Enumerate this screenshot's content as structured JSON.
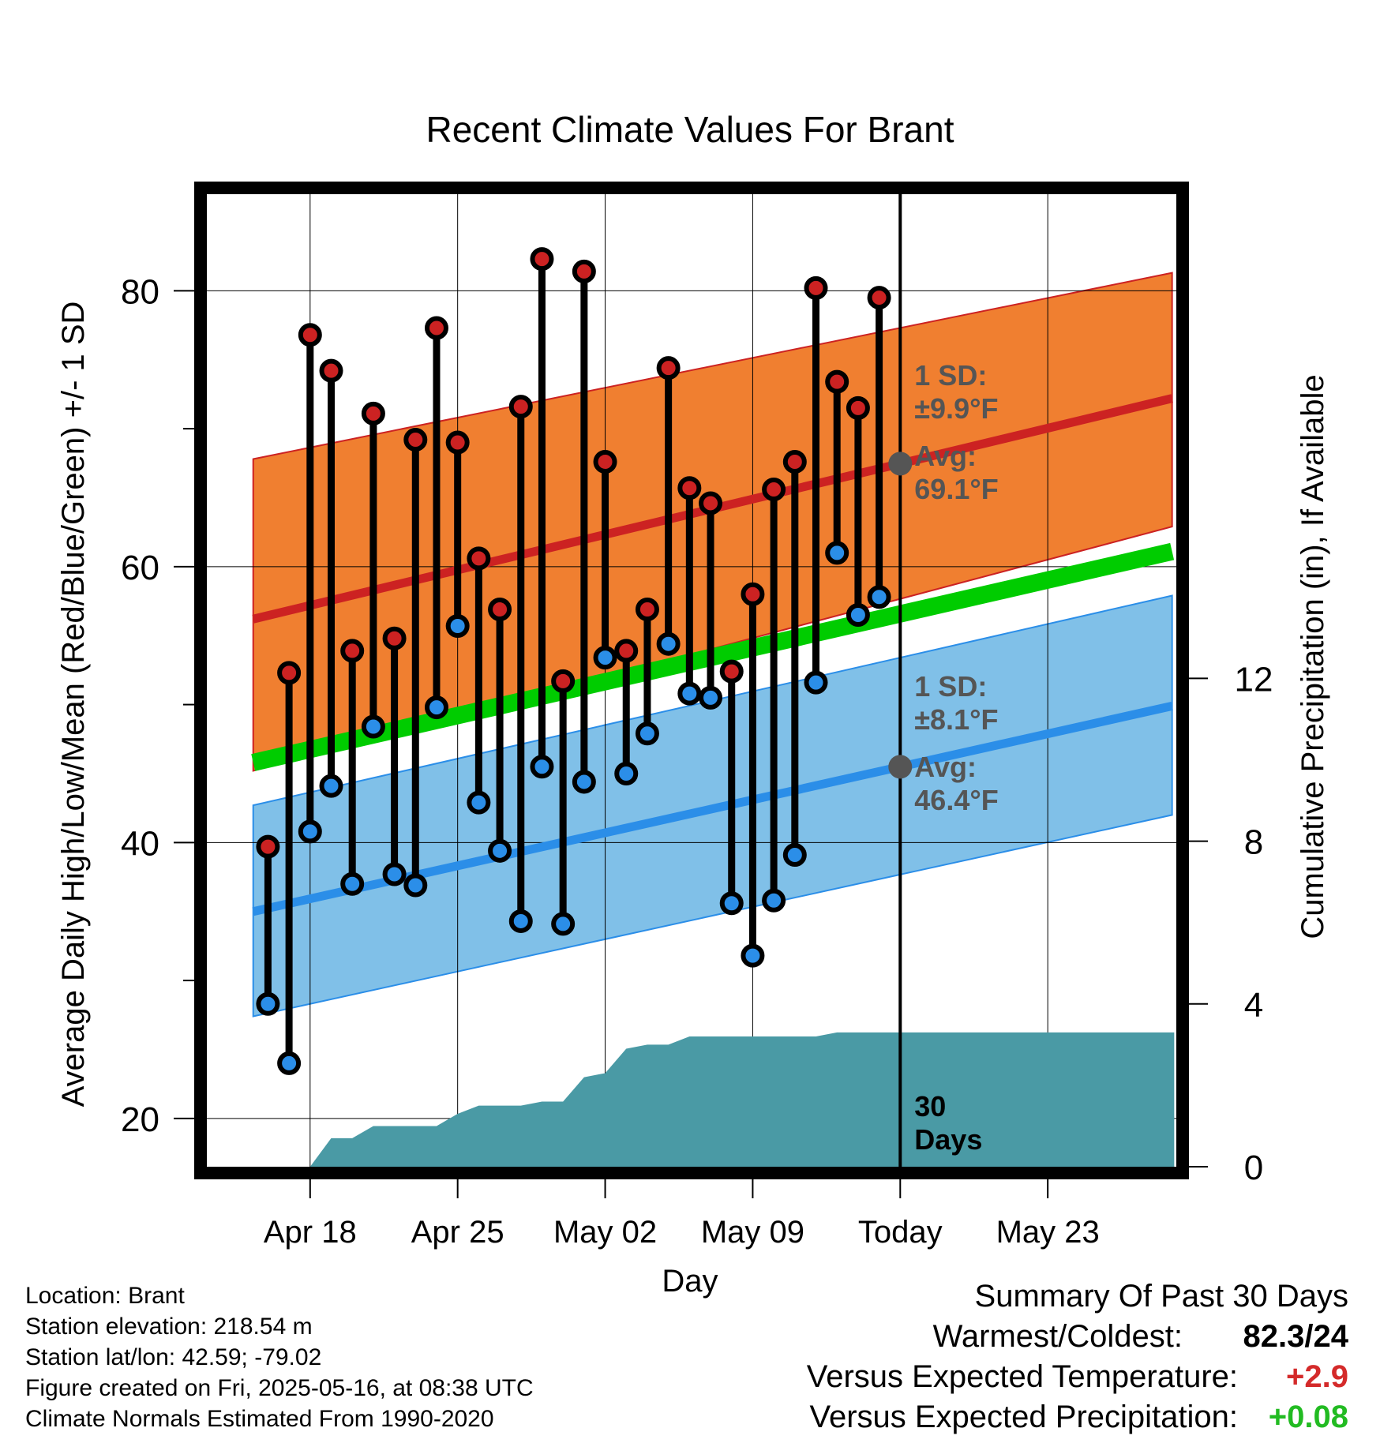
{
  "chart_data": {
    "type": "line",
    "title": "Recent Climate Values For Brant",
    "xlabel": "Day",
    "ylabel": "Average Daily High/Low/Mean (Red/Blue/Green) +/- 1 SD",
    "y2label": "Cumulative Precipitation (in), If Available",
    "ylim": [
      16.5,
      87
    ],
    "y2lim": [
      0,
      23.9
    ],
    "xlim": [
      -4.9,
      41.1
    ],
    "x_origin_label": "Apr 18",
    "x_ticks": [
      {
        "day": 0,
        "label": "Apr 18"
      },
      {
        "day": 7,
        "label": "Apr 25"
      },
      {
        "day": 14,
        "label": "May 02"
      },
      {
        "day": 21,
        "label": "May 09"
      },
      {
        "day": 28,
        "label": "Today"
      },
      {
        "day": 35,
        "label": "May 23"
      }
    ],
    "y_ticks": [
      20,
      40,
      60,
      80
    ],
    "y2_ticks": [
      0,
      4,
      8,
      12
    ],
    "grid": true,
    "today_day": 28,
    "today_label": "30\nDays",
    "normals": {
      "x": [
        -2.7,
        40.9
      ],
      "high_mean": [
        56.2,
        72.2
      ],
      "high_upper": [
        67.8,
        81.3
      ],
      "high_lower": [
        45.2,
        62.9
      ],
      "mean": [
        45.8,
        61.1
      ],
      "low_mean": [
        35.0,
        49.9
      ],
      "low_upper": [
        42.7,
        57.9
      ],
      "low_lower": [
        27.4,
        42.0
      ]
    },
    "series": [
      {
        "name": "High",
        "color": "#cc2222",
        "x": [
          -2,
          -1,
          0,
          1,
          2,
          3,
          4,
          5,
          6,
          7,
          8,
          9,
          10,
          11,
          12,
          13,
          14,
          15,
          16,
          17,
          18,
          19,
          20,
          21,
          22,
          23,
          24,
          25,
          26,
          27
        ],
        "values": [
          39.7,
          52.3,
          76.8,
          74.2,
          53.9,
          71.1,
          54.8,
          69.2,
          77.3,
          69.0,
          60.6,
          56.9,
          71.6,
          82.3,
          51.7,
          81.4,
          67.6,
          53.9,
          56.9,
          74.4,
          65.7,
          64.6,
          52.4,
          58.0,
          65.6,
          67.6,
          80.2,
          73.4,
          71.5,
          79.5
        ]
      },
      {
        "name": "Low",
        "color": "#2b8ee8",
        "x": [
          -2,
          -1,
          0,
          1,
          2,
          3,
          4,
          5,
          6,
          7,
          8,
          9,
          10,
          11,
          12,
          13,
          14,
          15,
          16,
          17,
          18,
          19,
          20,
          21,
          22,
          23,
          24,
          25,
          26,
          27
        ],
        "values": [
          28.3,
          24.0,
          40.8,
          44.1,
          37.0,
          48.4,
          37.7,
          36.9,
          49.8,
          55.7,
          42.9,
          39.4,
          34.3,
          45.5,
          34.1,
          44.4,
          53.4,
          45.0,
          47.9,
          54.4,
          50.8,
          50.5,
          35.6,
          31.8,
          35.8,
          39.1,
          51.6,
          61.0,
          56.5,
          57.8
        ]
      }
    ],
    "precip": {
      "x": [
        0,
        1,
        2,
        3,
        4,
        5,
        6,
        7,
        8,
        9,
        10,
        11,
        12,
        13,
        14,
        15,
        16,
        17,
        18,
        19,
        20,
        21,
        22,
        23,
        24,
        25,
        26,
        27,
        28,
        41
      ],
      "values": [
        0.0,
        0.7,
        0.7,
        1.0,
        1.0,
        1.0,
        1.0,
        1.3,
        1.5,
        1.5,
        1.5,
        1.6,
        1.6,
        2.2,
        2.3,
        2.9,
        3.0,
        3.0,
        3.2,
        3.2,
        3.2,
        3.2,
        3.2,
        3.2,
        3.2,
        3.3,
        3.3,
        3.3,
        3.3,
        3.3
      ]
    },
    "annotations": {
      "high_sd": "1 SD:\n±9.9°F",
      "high_avg": "Avg:\n69.1°F",
      "low_sd": "1 SD:\n±8.1°F",
      "low_avg": "Avg:\n46.4°F"
    }
  },
  "meta": {
    "location": "Location: Brant",
    "elevation": "Station elevation: 218.54 m",
    "latlon": "Station lat/lon: 42.59; -79.02",
    "created": "Figure created on Fri, 2025-05-16, at 08:38 UTC",
    "normals": "Climate Normals Estimated From 1990-2020"
  },
  "summary": {
    "title": "Summary Of Past 30 Days",
    "warmest_label": "Warmest/Coldest:",
    "warmest_value": "82.3/24",
    "temp_label": "Versus Expected Temperature:",
    "temp_value": "+2.9",
    "temp_color": "#d42a2a",
    "precip_label": "Versus Expected Precipitation:",
    "precip_value": "+0.08",
    "precip_color": "#22bb22"
  },
  "colors": {
    "high_band": "#f07f30",
    "high_line": "#cc2222",
    "low_band": "#80c0e8",
    "low_line": "#2b8ee8",
    "mean_line": "#00cc00",
    "precip_fill": "#4a9aa5",
    "annotation": "#555555"
  }
}
